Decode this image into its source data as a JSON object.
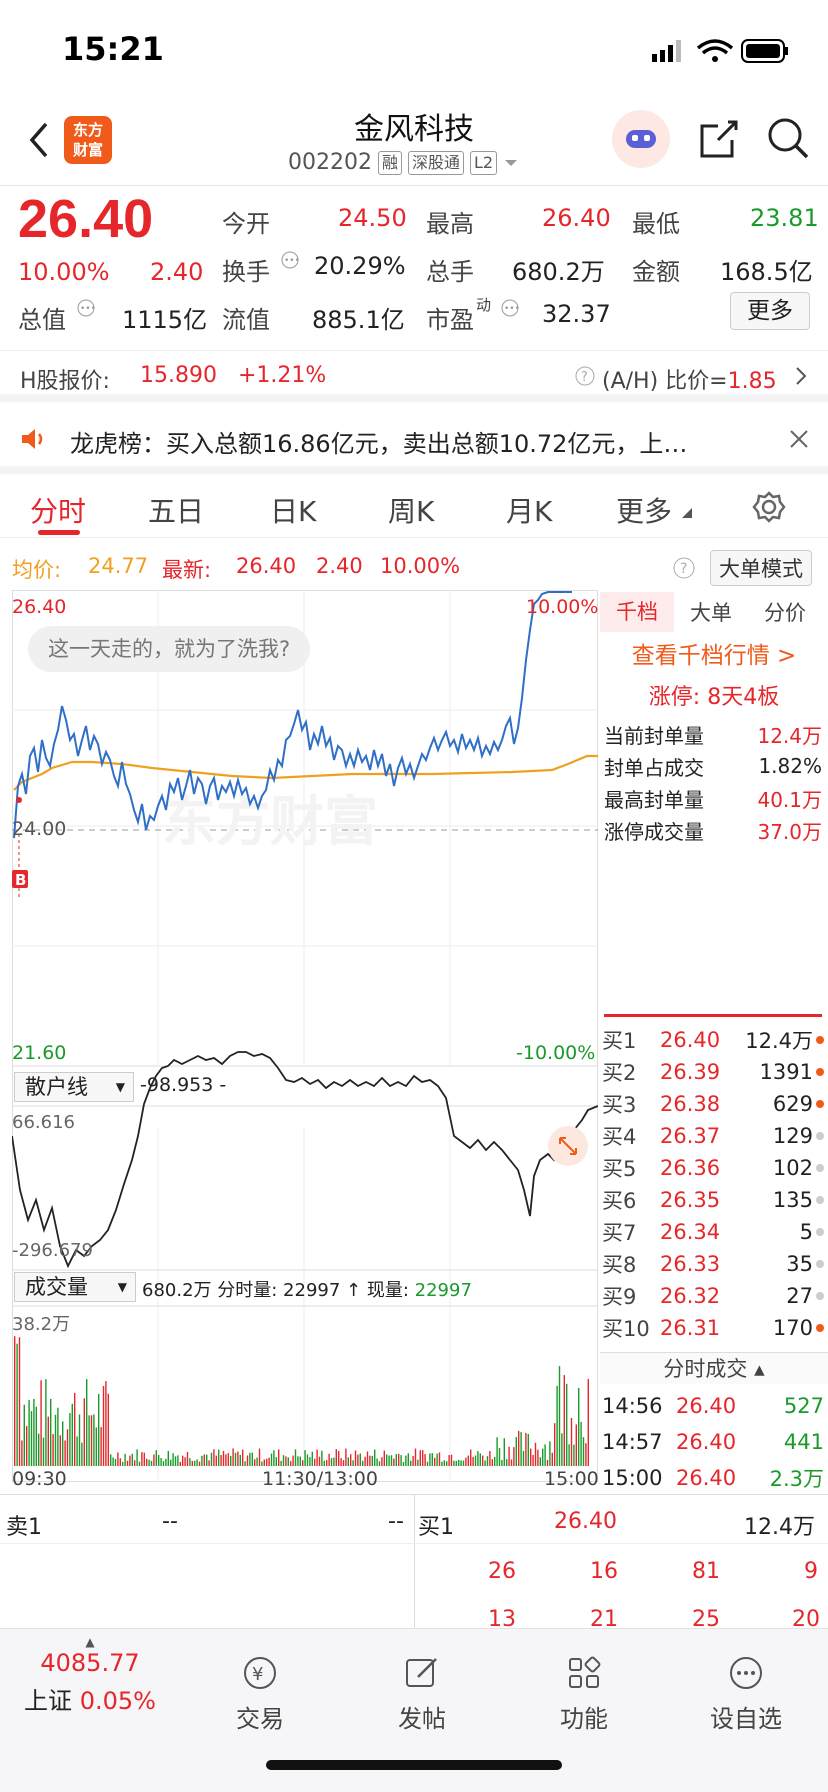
{
  "status": {
    "time": "15:21"
  },
  "header": {
    "title": "金风科技",
    "code": "002202",
    "tags": [
      "融",
      "深股通",
      "L2"
    ],
    "logo_line1": "东方",
    "logo_line2": "财富"
  },
  "quote": {
    "price": "26.40",
    "change_pct": "10.00%",
    "change": "2.40",
    "open_label": "今开",
    "open": "24.50",
    "high_label": "最高",
    "high": "26.40",
    "low_label": "最低",
    "low": "23.81",
    "turnover_label": "换手",
    "turnover": "20.29%",
    "volume_label": "总手",
    "volume": "680.2万",
    "amount_label": "金额",
    "amount": "168.5亿",
    "mktcap_label": "总值",
    "mktcap": "1115亿",
    "float_label": "流值",
    "float": "885.1亿",
    "pe_label": "市盈",
    "pe_sup": "动",
    "pe": "32.37",
    "more_label": "更多"
  },
  "hshare": {
    "label": "H股报价:",
    "price": "15.890",
    "change": "+1.21%",
    "ratio_label": "(A/H) 比价=",
    "ratio": "1.85"
  },
  "notice": {
    "text": "龙虎榜：买入总额16.86亿元，卖出总额10.72亿元，上…"
  },
  "tabs": [
    "分时",
    "五日",
    "日K",
    "周K",
    "月K",
    "更多"
  ],
  "info": {
    "avg_label": "均价:",
    "avg": "24.77",
    "latest_label": "最新:",
    "latest": "26.40",
    "chg": "2.40",
    "pct": "10.00%",
    "mode_label": "大单模式"
  },
  "chart": {
    "y_top": "26.40",
    "y_mid": "24.00",
    "y_bot": "21.60",
    "pct_top": "10.00%",
    "pct_bot": "-10.00%",
    "bubble": "这一天走的，就为了洗我?",
    "buy_marker": "B",
    "watermark": "东方财富"
  },
  "indicator": {
    "name": "散户线",
    "value": "-98.953 -",
    "top": "66.616",
    "bottom": "-296.679"
  },
  "vol": {
    "name": "成交量",
    "total": "680.2万",
    "detail": "分时量: 22997 ↑ 现量:",
    "now": "22997",
    "max": "38.2万",
    "t_start": "09:30",
    "t_mid": "11:30/13:00",
    "t_end": "15:00"
  },
  "right": {
    "tabs": [
      "千档",
      "大单",
      "分价"
    ],
    "link": "查看千档行情 >",
    "limit": "涨停: 8天4板",
    "stats": [
      {
        "label": "当前封单量",
        "value": "12.4万",
        "red": true
      },
      {
        "label": "封单占成交",
        "value": "1.82%",
        "red": false
      },
      {
        "label": "最高封单量",
        "value": "40.1万",
        "red": true
      },
      {
        "label": "涨停成交量",
        "value": "37.0万",
        "red": true
      }
    ],
    "orders": [
      {
        "l": "买1",
        "p": "26.40",
        "v": "12.4万",
        "d": "o"
      },
      {
        "l": "买2",
        "p": "26.39",
        "v": "1391",
        "d": "o"
      },
      {
        "l": "买3",
        "p": "26.38",
        "v": "629",
        "d": "o"
      },
      {
        "l": "买4",
        "p": "26.37",
        "v": "129",
        "d": "g"
      },
      {
        "l": "买5",
        "p": "26.36",
        "v": "102",
        "d": "g"
      },
      {
        "l": "买6",
        "p": "26.35",
        "v": "135",
        "d": "g"
      },
      {
        "l": "买7",
        "p": "26.34",
        "v": "5",
        "d": "g"
      },
      {
        "l": "买8",
        "p": "26.33",
        "v": "35",
        "d": "g"
      },
      {
        "l": "买9",
        "p": "26.32",
        "v": "27",
        "d": "g"
      },
      {
        "l": "买10",
        "p": "26.31",
        "v": "170",
        "d": "o"
      }
    ],
    "trades_label": "分时成交",
    "trades": [
      {
        "t": "14:56",
        "p": "26.40",
        "v": "527"
      },
      {
        "t": "14:57",
        "p": "26.40",
        "v": "441"
      },
      {
        "t": "15:00",
        "p": "26.40",
        "v": "2.3万"
      }
    ]
  },
  "bottom_book": {
    "sell_label": "卖1",
    "sell_price": "--",
    "sell_vol": "--",
    "buy_label": "买1",
    "buy_price": "26.40",
    "buy_vol": "12.4万",
    "row1": [
      "26",
      "16",
      "81",
      "9"
    ],
    "row2": [
      "13",
      "21",
      "25",
      "20"
    ]
  },
  "bottombar": {
    "index_value": "4085.77",
    "index_name": "上证",
    "index_pct": "0.05%",
    "items": [
      "交易",
      "发帖",
      "功能",
      "设自选"
    ]
  }
}
